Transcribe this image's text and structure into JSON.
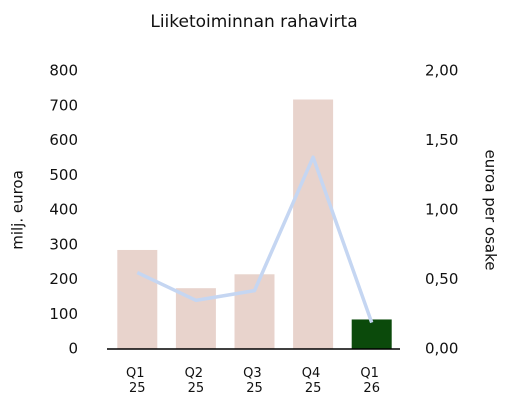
{
  "chart_data": {
    "type": "bar+line",
    "title": "Liiketoiminnan rahavirta",
    "ylabel": "milj. euroa",
    "y2label": "euroa per osake",
    "categories": [
      "Q1 25",
      "Q2 25",
      "Q3 25",
      "Q4 25",
      "Q1 26"
    ],
    "series": [
      {
        "type": "bar",
        "colors": [
          "#e8d3cc",
          "#e8d3cc",
          "#e8d3cc",
          "#e8d3cc",
          "#0b4a0b"
        ],
        "values": [
          285,
          175,
          215,
          718,
          85
        ]
      },
      {
        "type": "line",
        "axis": "y2",
        "color": "#c5d6f2",
        "values": [
          0.55,
          0.35,
          0.42,
          1.38,
          0.19
        ]
      }
    ],
    "ylim": [
      0,
      800
    ],
    "yticks": [
      0,
      100,
      200,
      300,
      400,
      500,
      600,
      700,
      800
    ],
    "y2lim": [
      0,
      2
    ],
    "y2ticks": [
      {
        "value": 0,
        "label": "0,00"
      },
      {
        "value": 0.5,
        "label": "0,50"
      },
      {
        "value": 1,
        "label": "1,00"
      },
      {
        "value": 1.5,
        "label": "1,50"
      },
      {
        "value": 2,
        "label": "2,00"
      }
    ]
  }
}
